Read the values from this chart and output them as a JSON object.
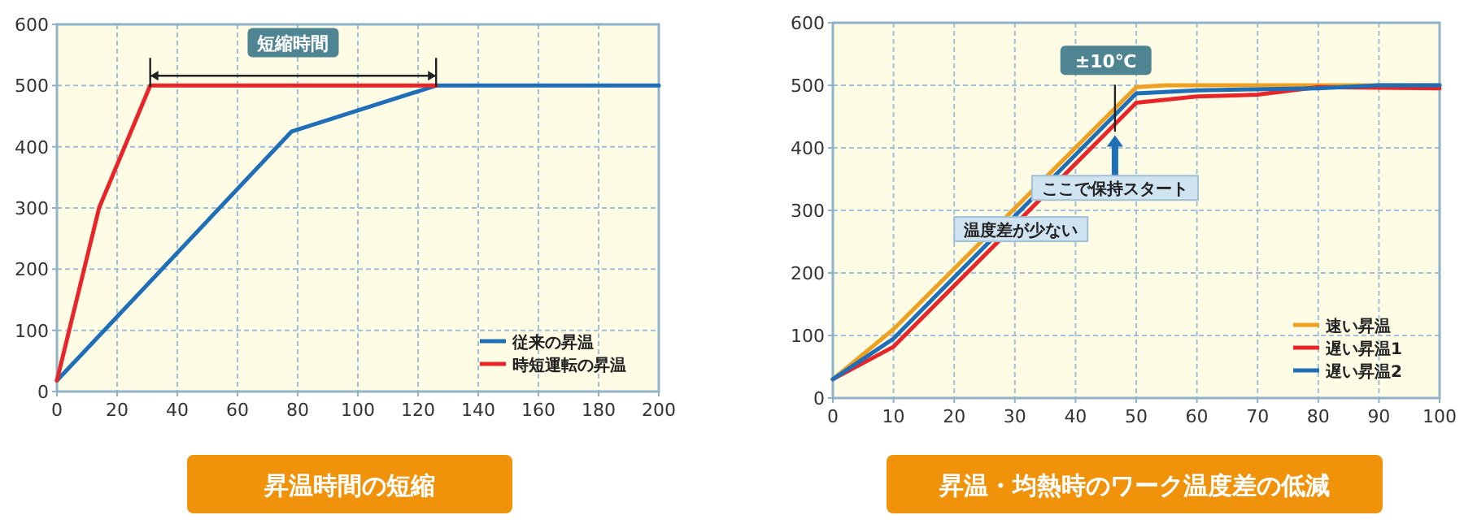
{
  "chart_data": [
    {
      "type": "line",
      "title": "昇温時間の短縮",
      "xlim": [
        0,
        200
      ],
      "ylim": [
        0,
        600
      ],
      "xticks": [
        0,
        20,
        40,
        60,
        80,
        100,
        120,
        140,
        160,
        180,
        200
      ],
      "yticks": [
        0,
        100,
        200,
        300,
        400,
        500,
        600
      ],
      "grid": true,
      "legend": "bottom right",
      "marker": "none",
      "line_style": "solid",
      "series": [
        {
          "name": "従来の昇温",
          "color": "#1f6fb8",
          "x": [
            0,
            78,
            126,
            200
          ],
          "values": [
            18,
            425,
            500,
            500
          ]
        },
        {
          "name": "時短運転の昇温",
          "color": "#e8262a",
          "x": [
            0,
            14,
            31,
            126
          ],
          "values": [
            18,
            300,
            500,
            500
          ]
        }
      ],
      "annotations": [
        "短縮時間"
      ]
    },
    {
      "type": "line",
      "title": "昇温・均熱時のワーク温度差の低減",
      "xlim": [
        0,
        100
      ],
      "ylim": [
        0,
        600
      ],
      "xticks": [
        0,
        10,
        20,
        30,
        40,
        50,
        60,
        70,
        80,
        90,
        100
      ],
      "yticks": [
        0,
        100,
        200,
        300,
        400,
        500,
        600
      ],
      "grid": true,
      "legend": "bottom right",
      "marker": "none",
      "line_style": "solid",
      "series": [
        {
          "name": "速い昇温",
          "color": "#f0a020",
          "x": [
            0,
            10,
            50,
            55,
            75,
            100
          ],
          "values": [
            30,
            110,
            497,
            500,
            500,
            500
          ]
        },
        {
          "name": "遅い昇温1",
          "color": "#e8262a",
          "x": [
            0,
            10,
            50,
            60,
            70,
            80,
            100
          ],
          "values": [
            30,
            82,
            472,
            482,
            485,
            497,
            495
          ]
        },
        {
          "name": "遅い昇温2",
          "color": "#1f6fb8",
          "x": [
            0,
            10,
            50,
            60,
            80,
            90,
            100
          ],
          "values": [
            30,
            95,
            487,
            492,
            495,
            500,
            500
          ]
        }
      ],
      "annotations": [
        "±10℃",
        "ここで保持スタート",
        "温度差が少ない"
      ]
    }
  ]
}
